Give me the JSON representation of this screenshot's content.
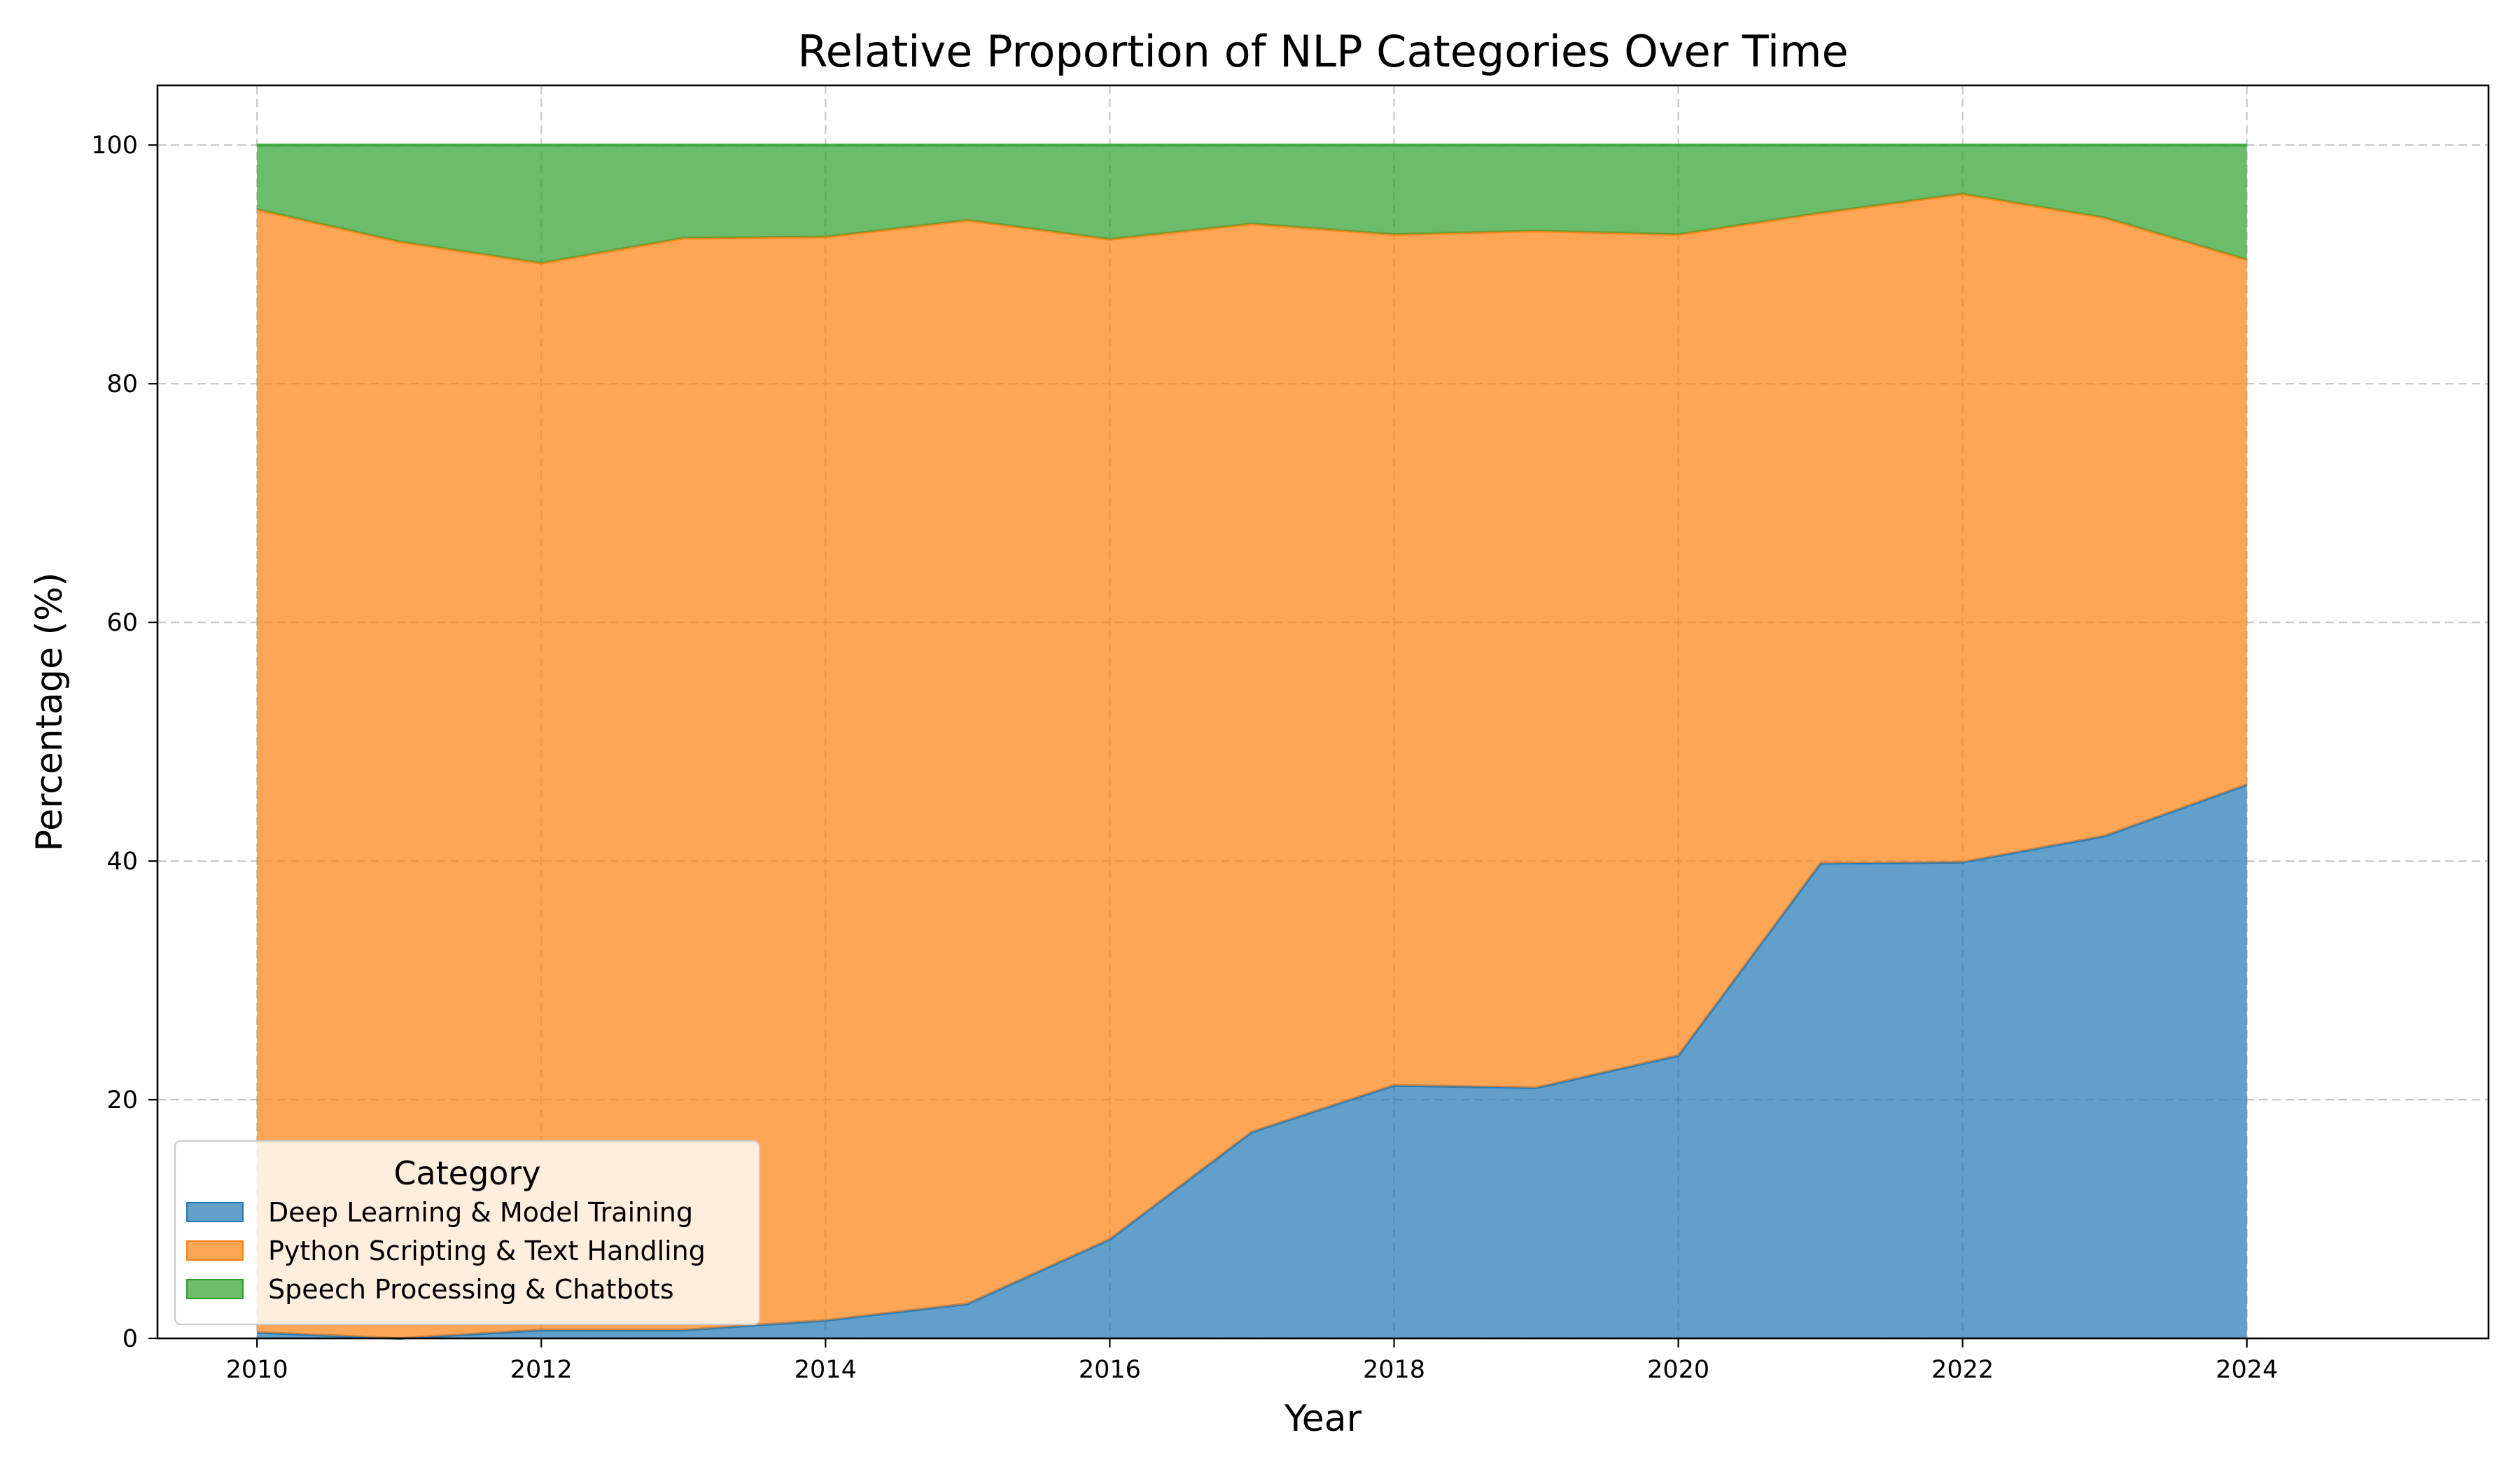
{
  "chart_data": {
    "type": "area",
    "stacked": true,
    "normalized_percent": true,
    "title": "Relative Proportion of NLP Categories Over Time",
    "xlabel": "Year",
    "ylabel": "Percentage (%)",
    "xlim": [
      2009.3,
      2025.7
    ],
    "ylim": [
      0,
      105
    ],
    "xticks": [
      2010,
      2012,
      2014,
      2016,
      2018,
      2020,
      2022,
      2024
    ],
    "yticks": [
      0,
      20,
      40,
      60,
      80,
      100
    ],
    "grid": true,
    "legend": {
      "title": "Category",
      "placement": "lower-left"
    },
    "x": [
      2010,
      2011,
      2012,
      2013,
      2014,
      2015,
      2016,
      2017,
      2018,
      2019,
      2020,
      2021,
      2022,
      2023,
      2024
    ],
    "series": [
      {
        "name": "Deep Learning & Model Training",
        "color": "#1f77b4",
        "values": [
          0.5,
          0.0,
          0.7,
          0.7,
          1.5,
          2.9,
          8.3,
          17.3,
          21.2,
          21.0,
          23.7,
          39.8,
          39.9,
          42.1,
          46.4
        ]
      },
      {
        "name": "Python Scripting & Text Handling",
        "color": "#ff7f0e",
        "values": [
          94.1,
          91.9,
          89.4,
          91.5,
          90.8,
          90.8,
          83.8,
          76.1,
          71.3,
          71.8,
          68.8,
          54.5,
          56.0,
          51.8,
          44.0
        ]
      },
      {
        "name": "Speech Processing & Chatbots",
        "color": "#2ca02c",
        "values": [
          5.4,
          8.1,
          9.9,
          7.8,
          7.7,
          6.3,
          7.9,
          6.6,
          7.5,
          7.2,
          7.5,
          5.7,
          4.1,
          6.1,
          9.6
        ]
      }
    ]
  }
}
